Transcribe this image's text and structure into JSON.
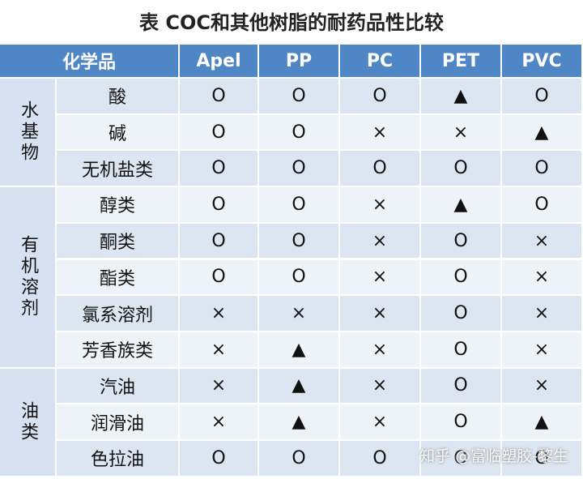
{
  "title": "表 COC和其他树脂的耐药品性比较",
  "table": {
    "header": [
      "化学品",
      "Apel",
      "PP",
      "PC",
      "PET",
      "PVC"
    ],
    "groups": [
      {
        "label": "水基物",
        "rows": [
          {
            "name": "酸",
            "cells": [
              "O",
              "O",
              "O",
              "▲",
              "O"
            ]
          },
          {
            "name": "碱",
            "cells": [
              "O",
              "O",
              "×",
              "×",
              "▲"
            ]
          },
          {
            "name": "无机盐类",
            "cells": [
              "O",
              "O",
              "O",
              "O",
              "O"
            ]
          }
        ]
      },
      {
        "label": "有机溶剂",
        "rows": [
          {
            "name": "醇类",
            "cells": [
              "O",
              "O",
              "×",
              "▲",
              "O"
            ]
          },
          {
            "name": "酮类",
            "cells": [
              "O",
              "O",
              "×",
              "O",
              "×"
            ]
          },
          {
            "name": "酯类",
            "cells": [
              "O",
              "O",
              "×",
              "O",
              "×"
            ]
          },
          {
            "name": "氯系溶剂",
            "cells": [
              "×",
              "×",
              "×",
              "O",
              "×"
            ]
          },
          {
            "name": "芳香族类",
            "cells": [
              "×",
              "▲",
              "×",
              "O",
              "×"
            ]
          }
        ]
      },
      {
        "label": "油类",
        "rows": [
          {
            "name": "汽油",
            "cells": [
              "×",
              "▲",
              "×",
              "O",
              "×"
            ]
          },
          {
            "name": "润滑油",
            "cells": [
              "×",
              "▲",
              "×",
              "O",
              "▲"
            ]
          },
          {
            "name": "色拉油",
            "cells": [
              "O",
              "O",
              "O",
              "O",
              "O"
            ]
          }
        ]
      }
    ]
  },
  "watermark": "知乎 @富临塑胶-黎生"
}
